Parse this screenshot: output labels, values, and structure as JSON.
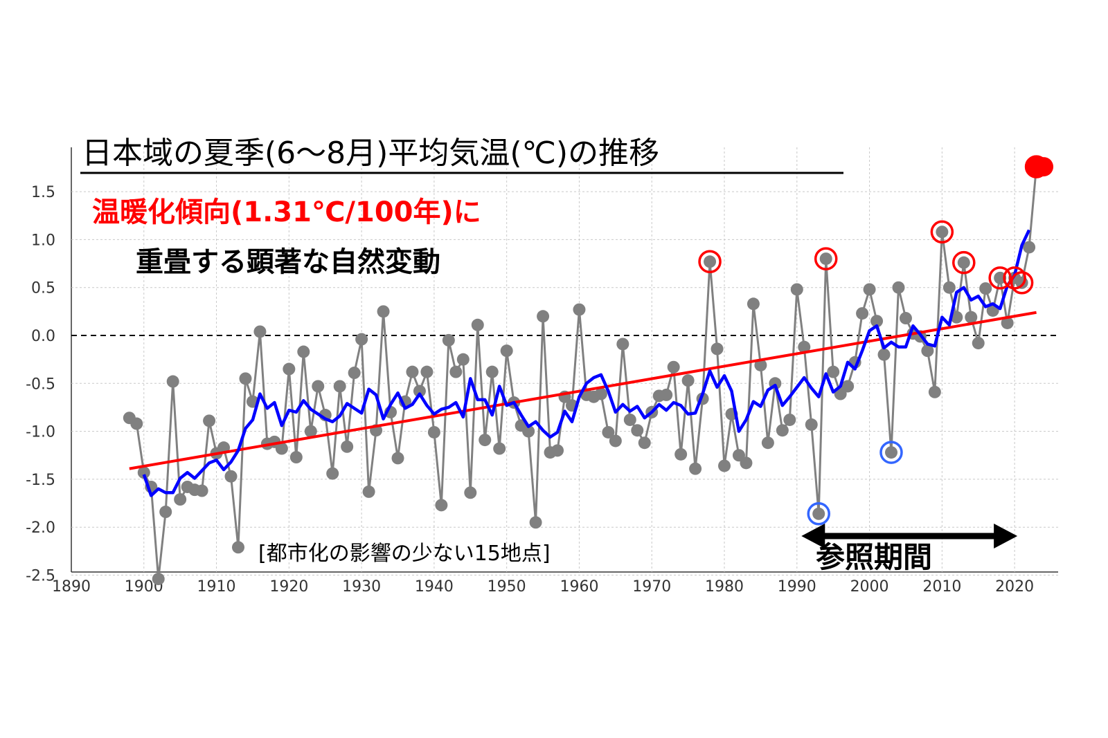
{
  "chart_data": {
    "type": "line",
    "title": "日本域の夏季(6〜8月)平均気温(℃)の推移",
    "subtitle_line1": "温暖化傾向(1.31℃/100年)に",
    "subtitle_line2": "重畳する顕著な自然変動",
    "note": "[都市化の影響の少ない15地点]",
    "reference_period_label": "参照期間",
    "reference_period": [
      1991,
      2020
    ],
    "xlim": [
      1890,
      2026
    ],
    "ylim": [
      -2.5,
      1.9
    ],
    "x_ticks": [
      "1890",
      "1900",
      "1910",
      "1920",
      "1930",
      "1940",
      "1950",
      "1960",
      "1970",
      "1980",
      "1990",
      "2000",
      "2010",
      "2020"
    ],
    "y_ticks": [
      "1.5",
      "1.0",
      "0.5",
      "0.0",
      "-0.5",
      "-1.0",
      "-1.5",
      "-2.0",
      "-2.5"
    ],
    "grid": true,
    "series": [
      {
        "role": "annual",
        "color": "#808080",
        "x": [
          1898,
          1899,
          1900,
          1901,
          1902,
          1903,
          1904,
          1905,
          1906,
          1907,
          1908,
          1909,
          1910,
          1911,
          1912,
          1913,
          1914,
          1915,
          1916,
          1917,
          1918,
          1919,
          1920,
          1921,
          1922,
          1923,
          1924,
          1925,
          1926,
          1927,
          1928,
          1929,
          1930,
          1931,
          1932,
          1933,
          1934,
          1935,
          1936,
          1937,
          1938,
          1939,
          1940,
          1941,
          1942,
          1943,
          1944,
          1945,
          1946,
          1947,
          1948,
          1949,
          1950,
          1951,
          1952,
          1953,
          1954,
          1955,
          1956,
          1957,
          1958,
          1959,
          1960,
          1961,
          1962,
          1963,
          1964,
          1965,
          1966,
          1967,
          1968,
          1969,
          1970,
          1971,
          1972,
          1973,
          1974,
          1975,
          1976,
          1977,
          1978,
          1979,
          1980,
          1981,
          1982,
          1983,
          1984,
          1985,
          1986,
          1987,
          1988,
          1989,
          1990,
          1991,
          1992,
          1993,
          1994,
          1995,
          1996,
          1997,
          1998,
          1999,
          2000,
          2001,
          2002,
          2003,
          2004,
          2005,
          2006,
          2007,
          2008,
          2009,
          2010,
          2011,
          2012,
          2013,
          2014,
          2015,
          2016,
          2017,
          2018,
          2019,
          2020,
          2021,
          2022,
          2023,
          2024
        ],
        "values": [
          -0.86,
          -0.92,
          -1.43,
          -1.58,
          -2.54,
          -1.84,
          -0.48,
          -1.71,
          -1.58,
          -1.61,
          -1.62,
          -0.89,
          -1.23,
          -1.17,
          -1.47,
          -2.21,
          -0.45,
          -0.69,
          0.04,
          -1.13,
          -1.11,
          -1.18,
          -0.35,
          -1.27,
          -0.17,
          -1.0,
          -0.53,
          -0.83,
          -1.44,
          -0.53,
          -1.16,
          -0.39,
          -0.04,
          -1.63,
          -0.99,
          0.25,
          -0.8,
          -1.28,
          -0.69,
          -0.38,
          -0.58,
          -0.38,
          -1.01,
          -1.77,
          -0.05,
          -0.38,
          -0.25,
          -1.64,
          0.11,
          -1.09,
          -0.38,
          -1.18,
          -0.16,
          -0.7,
          -0.94,
          -1.0,
          -1.95,
          0.2,
          -1.22,
          -1.2,
          -0.64,
          -0.73,
          0.27,
          -0.62,
          -0.64,
          -0.61,
          -1.01,
          -1.1,
          -0.09,
          -0.88,
          -0.99,
          -1.12,
          -0.8,
          -0.63,
          -0.62,
          -0.33,
          -1.24,
          -0.47,
          -1.39,
          -0.66,
          0.77,
          -0.14,
          -1.36,
          -0.82,
          -1.25,
          -1.33,
          0.33,
          -0.31,
          -1.12,
          -0.5,
          -0.99,
          -0.88,
          0.48,
          -0.12,
          -0.93,
          -1.86,
          0.8,
          -0.38,
          -0.61,
          -0.53,
          -0.28,
          0.23,
          0.48,
          0.15,
          -0.2,
          -1.22,
          0.5,
          0.18,
          0.02,
          -0.01,
          -0.16,
          -0.59,
          1.08,
          0.5,
          0.19,
          0.76,
          0.19,
          -0.08,
          0.49,
          0.26,
          0.6,
          0.13,
          0.6,
          0.55,
          0.92,
          1.76,
          1.76
        ]
      },
      {
        "role": "5-year running mean",
        "color": "#0000ff",
        "x": [
          1900,
          1901,
          1902,
          1903,
          1904,
          1905,
          1906,
          1907,
          1908,
          1909,
          1910,
          1911,
          1912,
          1913,
          1914,
          1915,
          1916,
          1917,
          1918,
          1919,
          1920,
          1921,
          1922,
          1923,
          1924,
          1925,
          1926,
          1927,
          1928,
          1929,
          1930,
          1931,
          1932,
          1933,
          1934,
          1935,
          1936,
          1937,
          1938,
          1939,
          1940,
          1941,
          1942,
          1943,
          1944,
          1945,
          1946,
          1947,
          1948,
          1949,
          1950,
          1951,
          1952,
          1953,
          1954,
          1955,
          1956,
          1957,
          1958,
          1959,
          1960,
          1961,
          1962,
          1963,
          1964,
          1965,
          1966,
          1967,
          1968,
          1969,
          1970,
          1971,
          1972,
          1973,
          1974,
          1975,
          1976,
          1977,
          1978,
          1979,
          1980,
          1981,
          1982,
          1983,
          1984,
          1985,
          1986,
          1987,
          1988,
          1989,
          1990,
          1991,
          1992,
          1993,
          1994,
          1995,
          1996,
          1997,
          1998,
          1999,
          2000,
          2001,
          2002,
          2003,
          2004,
          2005,
          2006,
          2007,
          2008,
          2009,
          2010,
          2011,
          2012,
          2013,
          2014,
          2015,
          2016,
          2017,
          2018,
          2019,
          2020,
          2021,
          2022
        ],
        "values": [
          -1.45,
          -1.67,
          -1.6,
          -1.64,
          -1.64,
          -1.49,
          -1.43,
          -1.49,
          -1.41,
          -1.33,
          -1.3,
          -1.4,
          -1.32,
          -1.2,
          -0.97,
          -0.88,
          -0.61,
          -0.76,
          -0.7,
          -0.94,
          -0.78,
          -0.8,
          -0.68,
          -0.77,
          -0.82,
          -0.87,
          -0.9,
          -0.84,
          -0.71,
          -0.76,
          -0.81,
          -0.56,
          -0.62,
          -0.87,
          -0.72,
          -0.6,
          -0.76,
          -0.72,
          -0.61,
          -0.73,
          -0.82,
          -0.77,
          -0.75,
          -0.7,
          -0.85,
          -0.45,
          -0.67,
          -0.67,
          -0.83,
          -0.53,
          -0.73,
          -0.7,
          -0.83,
          -0.95,
          -0.9,
          -0.99,
          -1.06,
          -1.01,
          -0.79,
          -0.9,
          -0.64,
          -0.5,
          -0.44,
          -0.41,
          -0.58,
          -0.8,
          -0.72,
          -0.79,
          -0.74,
          -0.86,
          -0.8,
          -0.72,
          -0.78,
          -0.7,
          -0.73,
          -0.82,
          -0.81,
          -0.61,
          -0.37,
          -0.54,
          -0.42,
          -0.58,
          -1.0,
          -0.88,
          -0.69,
          -0.74,
          -0.57,
          -0.52,
          -0.73,
          -0.64,
          -0.54,
          -0.44,
          -0.55,
          -0.64,
          -0.4,
          -0.59,
          -0.53,
          -0.28,
          -0.35,
          -0.16,
          0.05,
          0.1,
          -0.13,
          -0.07,
          -0.12,
          -0.12,
          0.1,
          0.01,
          -0.09,
          -0.11,
          0.19,
          0.11,
          0.45,
          0.5,
          0.37,
          0.41,
          0.3,
          0.33,
          0.28,
          0.52,
          0.63,
          0.94,
          1.1
        ]
      },
      {
        "role": "linear trend",
        "color": "#ff0000",
        "x": [
          1898,
          2023
        ],
        "values": [
          -1.39,
          0.24
        ]
      }
    ],
    "highlight_warm_years": [
      1978,
      1994,
      2010,
      2013,
      2018,
      2020,
      2021,
      2023
    ],
    "highlight_cool_years": [
      1993,
      2003
    ],
    "record_years": [
      2023,
      2024
    ]
  }
}
